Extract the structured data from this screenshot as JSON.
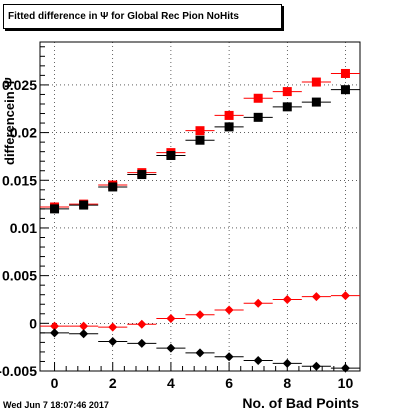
{
  "title": "Fitted difference in  Ψ  for Global Rec Pion NoHits",
  "timestamp": "Wed Jun  7 18:07:46 2017",
  "chart_data": {
    "type": "scatter",
    "title": "Fitted difference in  Ψ  for Global Rec Pion NoHits",
    "xlabel": "No. of Bad Points",
    "ylabel": "differencein  Ψ",
    "xlim": [
      -0.5,
      10.5
    ],
    "ylim": [
      -0.005,
      0.0295
    ],
    "grid": true,
    "x_tick_labels": [
      "0",
      "2",
      "4",
      "6",
      "8",
      "10"
    ],
    "y_tick_labels": [
      "-0.005",
      "0",
      "0.005",
      "0.01",
      "0.015",
      "0.02",
      "0.025"
    ],
    "series": [
      {
        "marker": "square",
        "color": "#ff0000",
        "x": [
          0,
          1,
          2,
          3,
          4,
          5,
          6,
          7,
          8,
          9,
          10
        ],
        "y": [
          0.0122,
          0.0125,
          0.0145,
          0.0158,
          0.0179,
          0.0202,
          0.0218,
          0.0236,
          0.0243,
          0.0253,
          0.0262
        ]
      },
      {
        "marker": "square",
        "color": "#000000",
        "x": [
          0,
          1,
          2,
          3,
          4,
          5,
          6,
          7,
          8,
          9,
          10
        ],
        "y": [
          0.012,
          0.0124,
          0.0143,
          0.0156,
          0.0176,
          0.0192,
          0.0206,
          0.0216,
          0.0227,
          0.0232,
          0.0245
        ]
      },
      {
        "marker": "diamond",
        "color": "#ff0000",
        "x": [
          0,
          1,
          2,
          3,
          4,
          5,
          6,
          7,
          8,
          9,
          10
        ],
        "y": [
          -0.0003,
          -0.0003,
          -0.0004,
          -0.0001,
          0.0005,
          0.0009,
          0.0014,
          0.0021,
          0.0025,
          0.0028,
          0.0029
        ]
      },
      {
        "marker": "diamond",
        "color": "#000000",
        "x": [
          0,
          1,
          2,
          3,
          4,
          5,
          6,
          7,
          8,
          9,
          10
        ],
        "y": [
          -0.001,
          -0.0011,
          -0.0019,
          -0.0021,
          -0.0026,
          -0.0031,
          -0.0035,
          -0.0039,
          -0.0042,
          -0.0045,
          -0.0047
        ]
      }
    ]
  }
}
